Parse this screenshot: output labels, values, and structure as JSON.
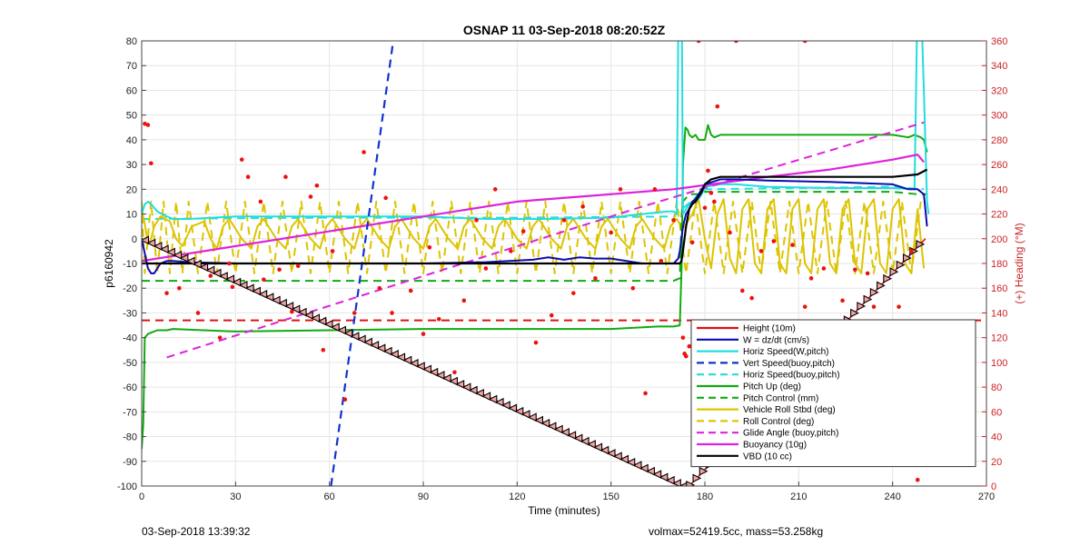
{
  "footer": {
    "left": "03-Sep-2018 13:39:32",
    "right": "volmax=52419.5cc, mass=53.258kg"
  },
  "chart_data": {
    "type": "line",
    "title": "OSNAP 11 03-Sep-2018 08:20:52Z",
    "xlabel": "Time (minutes)",
    "ylabel": "p6160942",
    "y2label": "(+) Heading (°M)",
    "xlim": [
      0,
      270
    ],
    "ylim": [
      -100,
      80
    ],
    "y2lim": [
      0,
      360
    ],
    "xticks": [
      "0",
      "30",
      "60",
      "90",
      "120",
      "150",
      "180",
      "210",
      "240",
      "270"
    ],
    "yticks": [
      "-100",
      "-90",
      "-80",
      "-70",
      "-60",
      "-50",
      "-40",
      "-30",
      "-20",
      "-10",
      "0",
      "10",
      "20",
      "30",
      "40",
      "50",
      "60",
      "70",
      "80"
    ],
    "y2ticks": [
      "0",
      "20",
      "40",
      "60",
      "80",
      "100",
      "120",
      "140",
      "160",
      "180",
      "200",
      "220",
      "240",
      "260",
      "280",
      "300",
      "320",
      "340",
      "360"
    ],
    "grid": true,
    "legend_position": "bottom-right",
    "colors": {
      "red": "#dd1111",
      "blue": "#0a0ab0",
      "cyan": "#22dddd",
      "blue_dash": "#1133cc",
      "green": "#11aa11",
      "yellow": "#ddc400",
      "magenta": "#dd22dd",
      "black": "#000000",
      "axis_right": "#cc2222"
    },
    "series": [
      {
        "name": "Height (10m)",
        "color": "red",
        "dash": false,
        "width": 1.6,
        "x": [
          0,
          173,
          175,
          250.5
        ],
        "y": [
          0,
          -100,
          -100,
          0
        ]
      },
      {
        "name": "W = dz/dt (cm/s)",
        "color": "blue",
        "dash": false,
        "width": 2,
        "x": [
          0,
          1,
          2,
          3,
          4,
          5,
          6,
          8,
          10,
          15,
          30,
          60,
          90,
          110,
          125,
          130,
          135,
          140,
          145,
          150,
          160,
          168,
          170,
          171.5,
          172,
          172.5,
          173,
          174,
          175,
          176,
          177,
          178,
          179,
          180,
          185,
          190,
          200,
          220,
          240,
          245,
          248,
          250,
          251
        ],
        "y": [
          0,
          -6,
          -12,
          -14,
          -14,
          -12,
          -10,
          -9,
          -9,
          -9.5,
          -10,
          -10,
          -10,
          -9.5,
          -8.5,
          -7.5,
          -8.5,
          -7.5,
          -8,
          -8,
          -10,
          -10,
          -10,
          -8,
          -5,
          0,
          5,
          10,
          12,
          15,
          16,
          18,
          20,
          22,
          24,
          24,
          23.5,
          23,
          22,
          20,
          20,
          18,
          5
        ]
      },
      {
        "name": "Horiz Speed(W,pitch)",
        "color": "cyan",
        "dash": false,
        "width": 2,
        "x": [
          0,
          1,
          2,
          3,
          5,
          8,
          10,
          15,
          30,
          60,
          90,
          110,
          130,
          150,
          160,
          168,
          170,
          171,
          171.6,
          171.9,
          172.2,
          172.6,
          173,
          174,
          175,
          176,
          177,
          178,
          179,
          180,
          185,
          190,
          200,
          220,
          240,
          247,
          248,
          248.5,
          249,
          250,
          251,
          251.5
        ],
        "y": [
          10,
          14,
          15,
          14,
          11,
          9,
          8,
          8,
          9,
          9,
          9,
          8,
          8,
          8.5,
          10,
          11,
          11,
          10,
          100,
          100,
          100,
          100,
          10,
          12,
          14,
          15,
          15,
          16,
          18,
          21,
          22,
          22,
          21,
          20.5,
          20.5,
          20,
          100,
          100,
          100,
          60,
          15,
          10
        ]
      },
      {
        "name": "Vert Speed(buoy,pitch)",
        "color": "blue_dash",
        "dash": true,
        "width": 2.2,
        "x": [
          60.5,
          80.5
        ],
        "y": [
          -100,
          81
        ]
      },
      {
        "name": "Horiz Speed(buoy,pitch)",
        "color": "cyan",
        "dash": true,
        "width": 2,
        "x": [
          0,
          60,
          120,
          170,
          180,
          240,
          250
        ],
        "y": [
          8,
          8.5,
          8.5,
          9,
          20,
          21,
          20
        ]
      },
      {
        "name": "Pitch Up (deg)",
        "color": "green",
        "dash": false,
        "width": 2,
        "x": [
          0,
          0.5,
          1,
          2,
          3,
          5,
          8,
          10,
          30,
          60,
          90,
          120,
          150,
          165,
          170,
          172,
          172.6,
          173,
          173.8,
          174.5,
          175,
          176,
          177,
          178,
          180,
          181,
          182,
          183,
          185,
          200,
          220,
          240,
          245,
          247,
          249,
          250,
          251
        ],
        "y": [
          -85,
          -75,
          -40,
          -38.5,
          -38,
          -37,
          -37,
          -36.5,
          -37.5,
          -37,
          -36.5,
          -36.5,
          -36.5,
          -35.5,
          -35.5,
          -35,
          -10,
          30,
          45,
          44,
          42,
          41,
          42,
          40,
          40,
          46,
          42,
          41,
          42,
          42,
          42,
          42,
          41,
          42,
          41,
          40,
          35
        ]
      },
      {
        "name": "Pitch Control (mm)",
        "color": "green",
        "dash": true,
        "width": 2,
        "x": [
          0,
          5,
          60,
          120,
          170,
          172,
          172.6,
          173,
          175,
          178,
          180,
          185,
          240,
          248,
          251
        ],
        "y": [
          -17,
          -17,
          -17,
          -17,
          -17,
          -16,
          10,
          15,
          18,
          18,
          19,
          19,
          19,
          18,
          18
        ]
      },
      {
        "name": "Vehicle Roll Stbd (deg)",
        "color": "yellow",
        "dash": false,
        "width": 2,
        "x": [
          0,
          1,
          2,
          3,
          4,
          6,
          9,
          11,
          13,
          16,
          20,
          22,
          24,
          26,
          28,
          32,
          35,
          37,
          39,
          43,
          46,
          48,
          50,
          54,
          57,
          59,
          61,
          65,
          68,
          70,
          72,
          76,
          79,
          81,
          83,
          87,
          90,
          92,
          94,
          98,
          101,
          103,
          105,
          109,
          112,
          114,
          116,
          120,
          123,
          125,
          127,
          131,
          134,
          136,
          138,
          142,
          145,
          147,
          149,
          153,
          156,
          158,
          160,
          164,
          167,
          169,
          171,
          173,
          176,
          178,
          180,
          182,
          184,
          186,
          188,
          190,
          192,
          194,
          196,
          198,
          200,
          202,
          204,
          206,
          208,
          210,
          212,
          214,
          216,
          218,
          220,
          222,
          224,
          226,
          228,
          230,
          232,
          234,
          236,
          238,
          240,
          242,
          244,
          246,
          248,
          250
        ],
        "y": [
          12,
          6,
          -2,
          0,
          5,
          9,
          7,
          0,
          -3,
          5,
          7,
          0,
          -4,
          5,
          8,
          0,
          -4,
          5,
          8,
          0,
          -4,
          5,
          8,
          0,
          -4,
          5,
          8,
          0,
          -4,
          5,
          8,
          0,
          -4,
          5,
          8,
          0,
          -4,
          5,
          8,
          0,
          -4,
          5,
          8,
          0,
          -4,
          5,
          8,
          0,
          -4,
          5,
          8,
          0,
          -4,
          5,
          8,
          0,
          -4,
          5,
          8,
          0,
          -4,
          5,
          8,
          0,
          -4,
          5,
          8,
          4,
          10,
          16,
          0,
          -12,
          10,
          16,
          -8,
          -14,
          12,
          16,
          -10,
          -14,
          12,
          16,
          -10,
          -14,
          12,
          16,
          -10,
          -14,
          12,
          16,
          -10,
          -14,
          12,
          16,
          -10,
          -14,
          12,
          16,
          -10,
          -14,
          12,
          16,
          -10,
          -14,
          12,
          -12
        ]
      },
      {
        "name": "Roll Control (deg)",
        "color": "yellow",
        "dash": true,
        "width": 2,
        "x": [
          0,
          1,
          3,
          5,
          7,
          9,
          11,
          13,
          15,
          18,
          21,
          24,
          27,
          30,
          33,
          36,
          39,
          42,
          45,
          48,
          51,
          54,
          57,
          60,
          63,
          66,
          69,
          72,
          75,
          78,
          81,
          84,
          87,
          90,
          93,
          96,
          99,
          102,
          105,
          108,
          111,
          114,
          117,
          120,
          123,
          126,
          129,
          132,
          135,
          138,
          141,
          144,
          147,
          150,
          153,
          156,
          159,
          162,
          165,
          168,
          171,
          174,
          177,
          180,
          183,
          186,
          189,
          192,
          195,
          198,
          201,
          204,
          207,
          210,
          213,
          216,
          219,
          222,
          225,
          228,
          231,
          234,
          237,
          240,
          243,
          246,
          249
        ],
        "y": [
          15,
          -14,
          15,
          -14,
          15,
          -14,
          15,
          -14,
          15,
          -14,
          15,
          -14,
          15,
          -14,
          15,
          -14,
          15,
          -14,
          15,
          -14,
          15,
          -14,
          15,
          -14,
          15,
          -14,
          15,
          -14,
          15,
          -14,
          15,
          -14,
          15,
          -14,
          15,
          -14,
          15,
          -14,
          15,
          -14,
          15,
          -14,
          15,
          -14,
          15,
          -14,
          15,
          -14,
          15,
          -14,
          15,
          -14,
          15,
          -14,
          15,
          -14,
          15,
          -14,
          15,
          -14,
          15,
          -14,
          15,
          -14,
          15,
          -14,
          15,
          -14,
          15,
          -14,
          15,
          -14,
          15,
          -14,
          15,
          -14,
          15,
          -14,
          15,
          -14,
          15,
          -14,
          15,
          -14,
          15,
          -14,
          15
        ]
      },
      {
        "name": "Glide Angle (buoy,pitch)",
        "color": "magenta",
        "dash": true,
        "width": 2,
        "x": [
          8,
          160,
          250
        ],
        "y": [
          -48,
          13,
          47
        ]
      },
      {
        "name": "Buoyancy (10g)",
        "color": "magenta",
        "dash": false,
        "width": 2.2,
        "x": [
          0,
          60,
          120,
          170,
          200,
          220,
          240,
          248,
          250
        ],
        "y": [
          -9,
          3,
          15,
          20,
          25,
          28,
          32,
          34,
          31
        ]
      },
      {
        "name": "VBD (10 cc)",
        "color": "black",
        "dash": false,
        "width": 2.2,
        "x": [
          0,
          10,
          20,
          60,
          120,
          160,
          170,
          172,
          172.5,
          173,
          174,
          175,
          176,
          177,
          178,
          179,
          180,
          182,
          185,
          190,
          200,
          220,
          240,
          248,
          251
        ],
        "y": [
          -10,
          -10,
          -10,
          -10,
          -10,
          -10,
          -10,
          -10,
          -9,
          -5,
          5,
          12,
          14,
          15,
          17,
          19,
          22,
          24,
          25,
          25,
          25,
          25,
          25,
          26,
          28
        ]
      }
    ],
    "red_hline": {
      "color": "red",
      "y": -33
    },
    "heading_points": [
      [
        1,
        293
      ],
      [
        2,
        292
      ],
      [
        3,
        261
      ],
      [
        8,
        156
      ],
      [
        12,
        160
      ],
      [
        18,
        140
      ],
      [
        22,
        170
      ],
      [
        25,
        120
      ],
      [
        28,
        180
      ],
      [
        29,
        161
      ],
      [
        32,
        264
      ],
      [
        34,
        250
      ],
      [
        38,
        230
      ],
      [
        39,
        167
      ],
      [
        44,
        175
      ],
      [
        46,
        250
      ],
      [
        48,
        141
      ],
      [
        50,
        178
      ],
      [
        54,
        234
      ],
      [
        56,
        243
      ],
      [
        58,
        110
      ],
      [
        61,
        190
      ],
      [
        65,
        70
      ],
      [
        68,
        140
      ],
      [
        71,
        270
      ],
      [
        76,
        160
      ],
      [
        78,
        233
      ],
      [
        80,
        140
      ],
      [
        86,
        158
      ],
      [
        90,
        123
      ],
      [
        92,
        193
      ],
      [
        95,
        135
      ],
      [
        100,
        92
      ],
      [
        103,
        150
      ],
      [
        107,
        215
      ],
      [
        110,
        176
      ],
      [
        113,
        240
      ],
      [
        118,
        190
      ],
      [
        122,
        206
      ],
      [
        126,
        116
      ],
      [
        131,
        138
      ],
      [
        135,
        215
      ],
      [
        138,
        156
      ],
      [
        141,
        226
      ],
      [
        145,
        168
      ],
      [
        150,
        205
      ],
      [
        153,
        240
      ],
      [
        157,
        160
      ],
      [
        161,
        75
      ],
      [
        164,
        240
      ],
      [
        166,
        182
      ],
      [
        170,
        215
      ],
      [
        173,
        120
      ],
      [
        173.5,
        107
      ],
      [
        174,
        105
      ],
      [
        175,
        113
      ],
      [
        176,
        197
      ],
      [
        180,
        225
      ],
      [
        181,
        255
      ],
      [
        182,
        237
      ],
      [
        183,
        230
      ],
      [
        184,
        307
      ],
      [
        185,
        115
      ],
      [
        188,
        205
      ],
      [
        190,
        83
      ],
      [
        192,
        158
      ],
      [
        195,
        152
      ],
      [
        198,
        190
      ],
      [
        200,
        60
      ],
      [
        202,
        198
      ],
      [
        205,
        32
      ],
      [
        206,
        82
      ],
      [
        208,
        195
      ],
      [
        210,
        50
      ],
      [
        212,
        145
      ],
      [
        214,
        168
      ],
      [
        216,
        52
      ],
      [
        218,
        176
      ],
      [
        220,
        60
      ],
      [
        222,
        55
      ],
      [
        224,
        150
      ],
      [
        226,
        107
      ],
      [
        228,
        175
      ],
      [
        230,
        90
      ],
      [
        232,
        172
      ],
      [
        234,
        145
      ],
      [
        236,
        123
      ],
      [
        238,
        66
      ],
      [
        240,
        97
      ],
      [
        242,
        145
      ],
      [
        244,
        57
      ],
      [
        246,
        190
      ],
      [
        248,
        5
      ],
      [
        249,
        100
      ],
      [
        178,
        360
      ],
      [
        190,
        360
      ],
      [
        212,
        360
      ]
    ],
    "legend": [
      "Height (10m)",
      "W = dz/dt (cm/s)",
      "Horiz Speed(W,pitch)",
      "Vert Speed(buoy,pitch)",
      "Horiz Speed(buoy,pitch)",
      "Pitch Up (deg)",
      "Pitch Control (mm)",
      "Vehicle Roll Stbd (deg)",
      "Roll Control (deg)",
      "Glide Angle (buoy,pitch)",
      "Buoyancy (10g)",
      "VBD (10 cc)"
    ]
  }
}
